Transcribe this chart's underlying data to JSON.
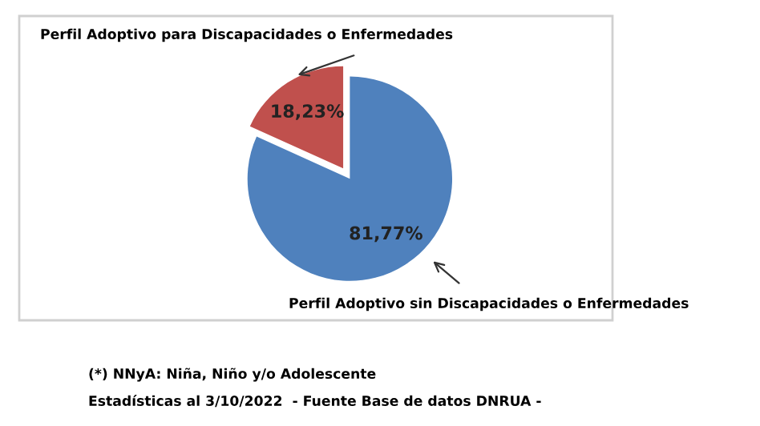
{
  "chart_data": {
    "type": "pie",
    "categories": [
      "Perfil Adoptivo para Discapacidades o Enfermedades",
      "Perfil Adoptivo sin Discapacidades o Enfermedades"
    ],
    "values": [
      18.23,
      81.77
    ],
    "colors": [
      "#c0504d",
      "#4f81bd"
    ],
    "value_labels": [
      "18,23%",
      "81,77%"
    ],
    "legend": false,
    "annotations": [
      "(*) NNyA: Niña, Niño y/o Adolescente",
      "Estadísticas al 3/10/2022  - Fuente Base de datos DNRUA -"
    ]
  }
}
